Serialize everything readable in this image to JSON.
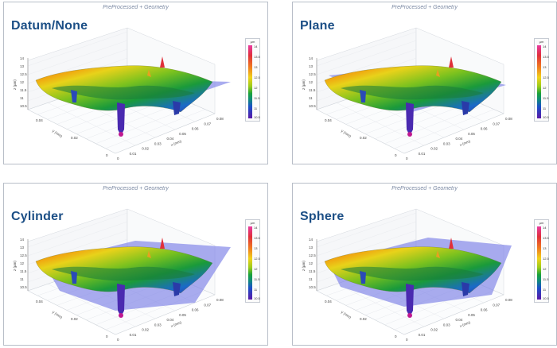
{
  "panels": [
    {
      "subtitle": "PreProcessed + Geometry",
      "title": "Datum/None",
      "fit": "none"
    },
    {
      "subtitle": "PreProcessed + Geometry",
      "title": "Plane",
      "fit": "plane"
    },
    {
      "subtitle": "PreProcessed + Geometry",
      "title": "Cylinder",
      "fit": "cylinder"
    },
    {
      "subtitle": "PreProcessed + Geometry",
      "title": "Sphere",
      "fit": "sphere"
    }
  ],
  "legend": {
    "unit": "µm",
    "labels": [
      "14",
      "13.5",
      "13",
      "12.5",
      "12",
      "11.5",
      "11",
      "10.5"
    ]
  },
  "axes": {
    "z_label": "z (µm)",
    "x_label": "x (mm)",
    "y_label": "y (mm)",
    "z_ticks": [
      "14",
      "13",
      "12.5",
      "12",
      "11.5",
      "11",
      "10.5"
    ],
    "x_ticks": [
      "0",
      "0.01",
      "0.02",
      "0.03",
      "0.04",
      "0.05",
      "0.06",
      "0.07",
      "0.08"
    ],
    "y_ticks": [
      "0",
      "0.02",
      "0.04"
    ]
  },
  "colors": {
    "title": "#1c4f86",
    "subtitle": "#7b89a3",
    "fit_surface": "#7b7fe6"
  }
}
